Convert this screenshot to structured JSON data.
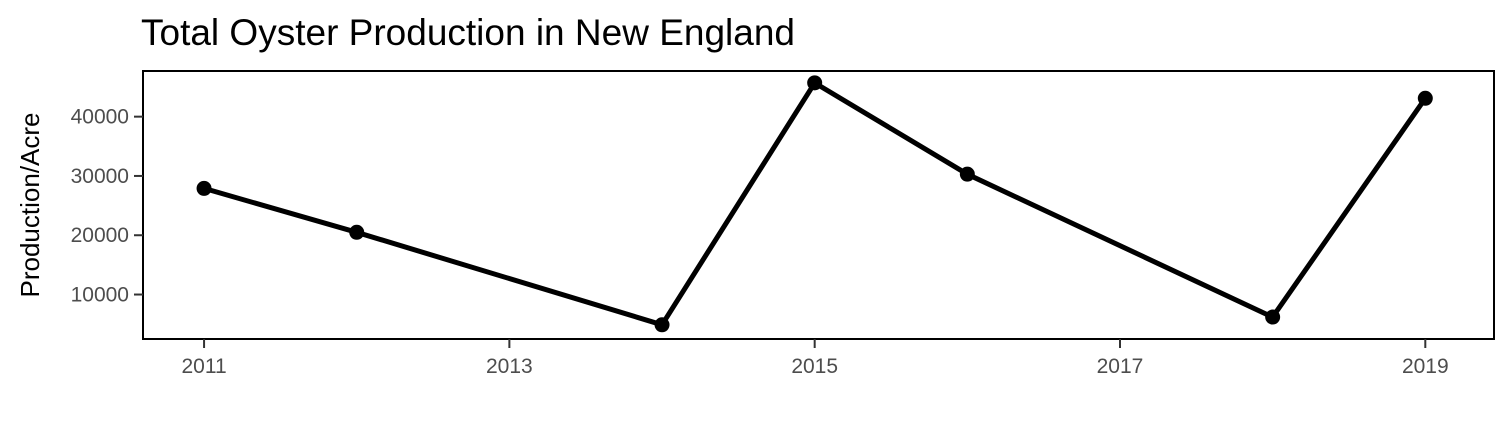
{
  "chart_data": {
    "type": "line",
    "title": "Total Oyster Production in New England",
    "xlabel": "",
    "ylabel": "Production/Acre",
    "x": [
      2011,
      2012,
      2014,
      2015,
      2016,
      2018,
      2019
    ],
    "series": [
      {
        "values": [
          27900,
          20500,
          4900,
          45700,
          30300,
          6200,
          43100
        ]
      }
    ],
    "xlim": [
      2010.6,
      2019.45
    ],
    "ylim": [
      2500,
      47700
    ],
    "x_ticks": [
      2011,
      2013,
      2015,
      2017,
      2019
    ],
    "y_ticks": [
      10000,
      20000,
      30000,
      40000
    ],
    "x_tick_labels": [
      "2011",
      "2013",
      "2015",
      "2017",
      "2019"
    ],
    "y_tick_labels": [
      "10000",
      "20000",
      "30000",
      "40000"
    ],
    "grid": false,
    "legend": "none",
    "line_color": "#000000",
    "marker": "circle"
  }
}
